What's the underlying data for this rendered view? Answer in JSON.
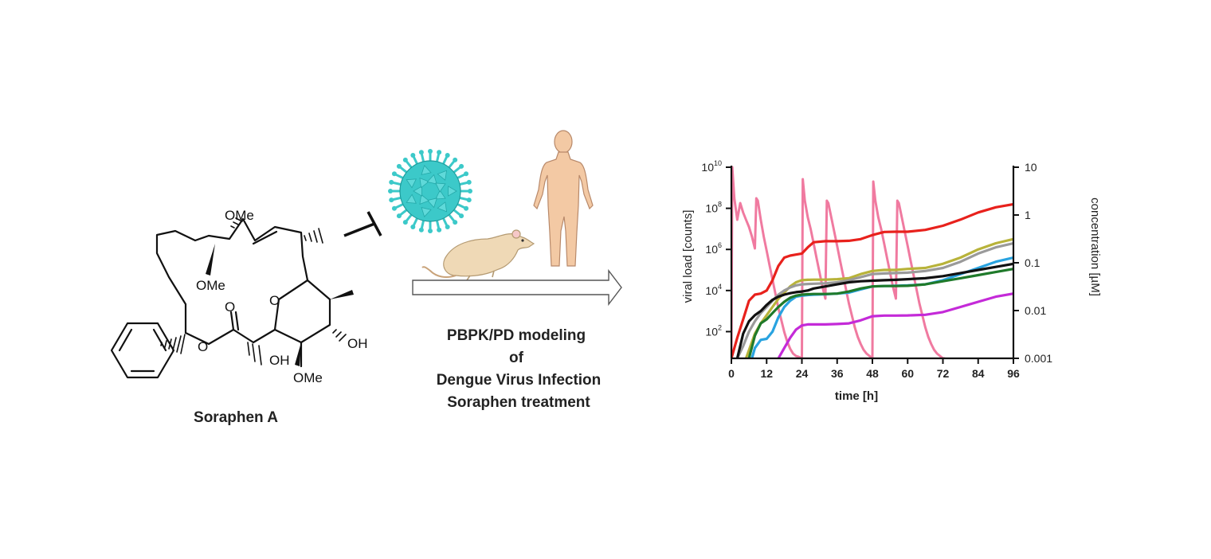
{
  "molecule": {
    "name": "Soraphen A",
    "labels": {
      "ome_top": "OMe",
      "ome_mid": "OMe",
      "ome_bottom": "OMe",
      "carbonyl_o": "O",
      "ester_o": "O",
      "ring_o": "O",
      "oh_right": "OH",
      "oh_bottom": "OH"
    }
  },
  "middle": {
    "caption_lines": [
      "PBPK/PD modeling",
      "of",
      "Dengue Virus Infection",
      "Soraphen treatment"
    ],
    "icons": [
      "virus-icon",
      "human-body-icon",
      "rat-icon",
      "arrow-icon"
    ]
  },
  "colors": {
    "virus": "#3cc9c9",
    "human": "#f3c9a4",
    "rat": "#efd9b6",
    "red": "#e8211c",
    "yellow": "#b8b33a",
    "gray": "#9a9a9a",
    "blue": "#29a3e0",
    "black": "#111111",
    "green": "#1f7a2a",
    "magenta": "#c42ad8",
    "pink": "#f07aa0"
  },
  "chart_data": {
    "type": "line",
    "xlabel": "time [h]",
    "ylabel_left": "viral load [counts]",
    "ylabel_right": "concentration [µM]",
    "x_ticks": [
      "0",
      "12",
      "24",
      "36",
      "48",
      "60",
      "72",
      "84",
      "96"
    ],
    "xlim": [
      0,
      96
    ],
    "y_left_ticks": [
      {
        "base": "10",
        "exp": "10",
        "value": 10
      },
      {
        "base": "10",
        "exp": "8",
        "value": 8
      },
      {
        "base": "10",
        "exp": "6",
        "value": 6
      },
      {
        "base": "10",
        "exp": "4",
        "value": 4
      },
      {
        "base": "10",
        "exp": "2",
        "value": 2
      }
    ],
    "ylim_left_log10": [
      0.7,
      10
    ],
    "y_right_ticks": [
      "10",
      "1",
      "0.1",
      "0.01",
      "0.001"
    ],
    "ylim_right_log10": [
      -3,
      1
    ],
    "series": [
      {
        "name": "red",
        "color": "#e8211c",
        "axis": "left",
        "x": [
          0,
          2,
          4,
          6,
          8,
          10,
          12,
          14,
          16,
          18,
          20,
          22,
          24,
          26,
          28,
          32,
          36,
          40,
          44,
          48,
          52,
          56,
          60,
          66,
          72,
          78,
          84,
          90,
          96
        ],
        "y": [
          0.7,
          1.7,
          2.6,
          3.5,
          3.8,
          3.85,
          4.0,
          4.5,
          5.2,
          5.6,
          5.7,
          5.75,
          5.8,
          6.1,
          6.35,
          6.4,
          6.4,
          6.42,
          6.5,
          6.7,
          6.85,
          6.86,
          6.86,
          6.95,
          7.15,
          7.45,
          7.8,
          8.05,
          8.2
        ]
      },
      {
        "name": "yellow",
        "color": "#b8b33a",
        "axis": "left",
        "x": [
          5,
          8,
          10,
          12,
          14,
          16,
          18,
          20,
          22,
          24,
          26,
          28,
          32,
          36,
          40,
          44,
          48,
          52,
          56,
          60,
          66,
          72,
          78,
          84,
          90,
          96
        ],
        "y": [
          0.7,
          1.9,
          2.4,
          2.8,
          3.2,
          3.6,
          3.9,
          4.2,
          4.4,
          4.5,
          4.52,
          4.53,
          4.53,
          4.55,
          4.6,
          4.8,
          4.95,
          5.0,
          5.0,
          5.05,
          5.1,
          5.3,
          5.6,
          6.0,
          6.3,
          6.5
        ]
      },
      {
        "name": "gray",
        "color": "#9a9a9a",
        "axis": "left",
        "x": [
          2,
          4,
          6,
          8,
          10,
          12,
          14,
          16,
          18,
          20,
          22,
          24,
          26,
          28,
          32,
          36,
          40,
          44,
          48,
          52,
          56,
          60,
          66,
          72,
          78,
          84,
          90,
          96
        ],
        "y": [
          0.7,
          1.3,
          2.0,
          2.5,
          2.9,
          3.2,
          3.5,
          3.8,
          4.0,
          4.15,
          4.25,
          4.3,
          4.32,
          4.33,
          4.35,
          4.4,
          4.5,
          4.65,
          4.8,
          4.83,
          4.85,
          4.87,
          4.95,
          5.1,
          5.4,
          5.8,
          6.1,
          6.3
        ]
      },
      {
        "name": "blue",
        "color": "#29a3e0",
        "axis": "left",
        "x": [
          7,
          8,
          10,
          12,
          14,
          16,
          18,
          20,
          22,
          24,
          26,
          28,
          32,
          36,
          40,
          44,
          48,
          52,
          56,
          60,
          66,
          72,
          78,
          84,
          90,
          96
        ],
        "y": [
          0.7,
          1.2,
          1.6,
          1.65,
          2.0,
          2.7,
          3.2,
          3.5,
          3.7,
          3.75,
          3.78,
          3.8,
          3.82,
          3.85,
          3.9,
          4.05,
          4.2,
          4.22,
          4.23,
          4.25,
          4.3,
          4.5,
          4.8,
          5.1,
          5.4,
          5.6
        ]
      },
      {
        "name": "black",
        "color": "#111111",
        "axis": "left",
        "x": [
          2,
          4,
          6,
          8,
          10,
          12,
          14,
          16,
          18,
          20,
          22,
          24,
          26,
          28,
          32,
          36,
          40,
          44,
          48,
          52,
          56,
          60,
          66,
          72,
          78,
          84,
          90,
          96
        ],
        "y": [
          0.7,
          1.9,
          2.5,
          2.8,
          3.0,
          3.3,
          3.55,
          3.7,
          3.8,
          3.87,
          3.92,
          3.95,
          4.0,
          4.1,
          4.2,
          4.3,
          4.4,
          4.45,
          4.48,
          4.5,
          4.52,
          4.55,
          4.6,
          4.7,
          4.85,
          5.0,
          5.15,
          5.3
        ]
      },
      {
        "name": "green",
        "color": "#1f7a2a",
        "axis": "left",
        "x": [
          6,
          8,
          10,
          12,
          14,
          16,
          18,
          20,
          22,
          24,
          26,
          28,
          32,
          36,
          40,
          44,
          48,
          52,
          56,
          60,
          66,
          72,
          78,
          84,
          90,
          96
        ],
        "y": [
          0.7,
          1.8,
          2.4,
          2.6,
          2.9,
          3.2,
          3.45,
          3.65,
          3.75,
          3.8,
          3.82,
          3.83,
          3.83,
          3.85,
          3.95,
          4.1,
          4.2,
          4.22,
          4.22,
          4.23,
          4.3,
          4.45,
          4.6,
          4.75,
          4.9,
          5.05
        ]
      },
      {
        "name": "magenta",
        "color": "#c42ad8",
        "axis": "left",
        "x": [
          16,
          18,
          20,
          22,
          24,
          26,
          28,
          32,
          36,
          40,
          44,
          48,
          52,
          56,
          60,
          66,
          72,
          78,
          84,
          90,
          96
        ],
        "y": [
          0.7,
          1.2,
          1.7,
          2.1,
          2.3,
          2.35,
          2.35,
          2.35,
          2.37,
          2.4,
          2.55,
          2.75,
          2.78,
          2.78,
          2.79,
          2.82,
          2.95,
          3.2,
          3.45,
          3.7,
          3.85
        ]
      },
      {
        "name": "pink (concentration)",
        "color": "#f07aa0",
        "axis": "right",
        "x": [
          0,
          0.3,
          1,
          2,
          3,
          4,
          5,
          6,
          7,
          8,
          8.5,
          9,
          10,
          11,
          12,
          13,
          14,
          15,
          16,
          17,
          18,
          19,
          20,
          21,
          22,
          23,
          24,
          24.3,
          25,
          26,
          27,
          28,
          29,
          30,
          31,
          32,
          32.5,
          33,
          34,
          35,
          36,
          37,
          38,
          39,
          40,
          41,
          42,
          43,
          44,
          45,
          46,
          47,
          48,
          48.3,
          49,
          50,
          51,
          52,
          53,
          54,
          55,
          56,
          56.5,
          57,
          58,
          59,
          60,
          61,
          62,
          63,
          64,
          65,
          66,
          67,
          68,
          69,
          70,
          71,
          72,
          72.5
        ],
        "y": [
          -3,
          1,
          0.35,
          -0.1,
          0.25,
          0.05,
          -0.1,
          -0.25,
          -0.45,
          -0.7,
          0.35,
          0.3,
          -0.1,
          -0.45,
          -0.75,
          -1.05,
          -1.35,
          -1.65,
          -1.95,
          -2.2,
          -2.45,
          -2.65,
          -2.8,
          -2.9,
          -2.95,
          -2.97,
          -3,
          0.75,
          0.3,
          -0.05,
          -0.3,
          -0.6,
          -0.9,
          -1.2,
          -1.5,
          -1.75,
          0.3,
          0.25,
          -0.05,
          -0.35,
          -0.65,
          -0.95,
          -1.25,
          -1.55,
          -1.85,
          -2.1,
          -2.35,
          -2.55,
          -2.7,
          -2.82,
          -2.9,
          -2.95,
          -3,
          0.7,
          0.3,
          -0.05,
          -0.3,
          -0.6,
          -0.9,
          -1.2,
          -1.5,
          -1.75,
          0.3,
          0.25,
          -0.05,
          -0.35,
          -0.65,
          -0.95,
          -1.25,
          -1.55,
          -1.85,
          -2.1,
          -2.35,
          -2.55,
          -2.7,
          -2.82,
          -2.9,
          -2.95,
          -3,
          -3
        ]
      }
    ]
  }
}
